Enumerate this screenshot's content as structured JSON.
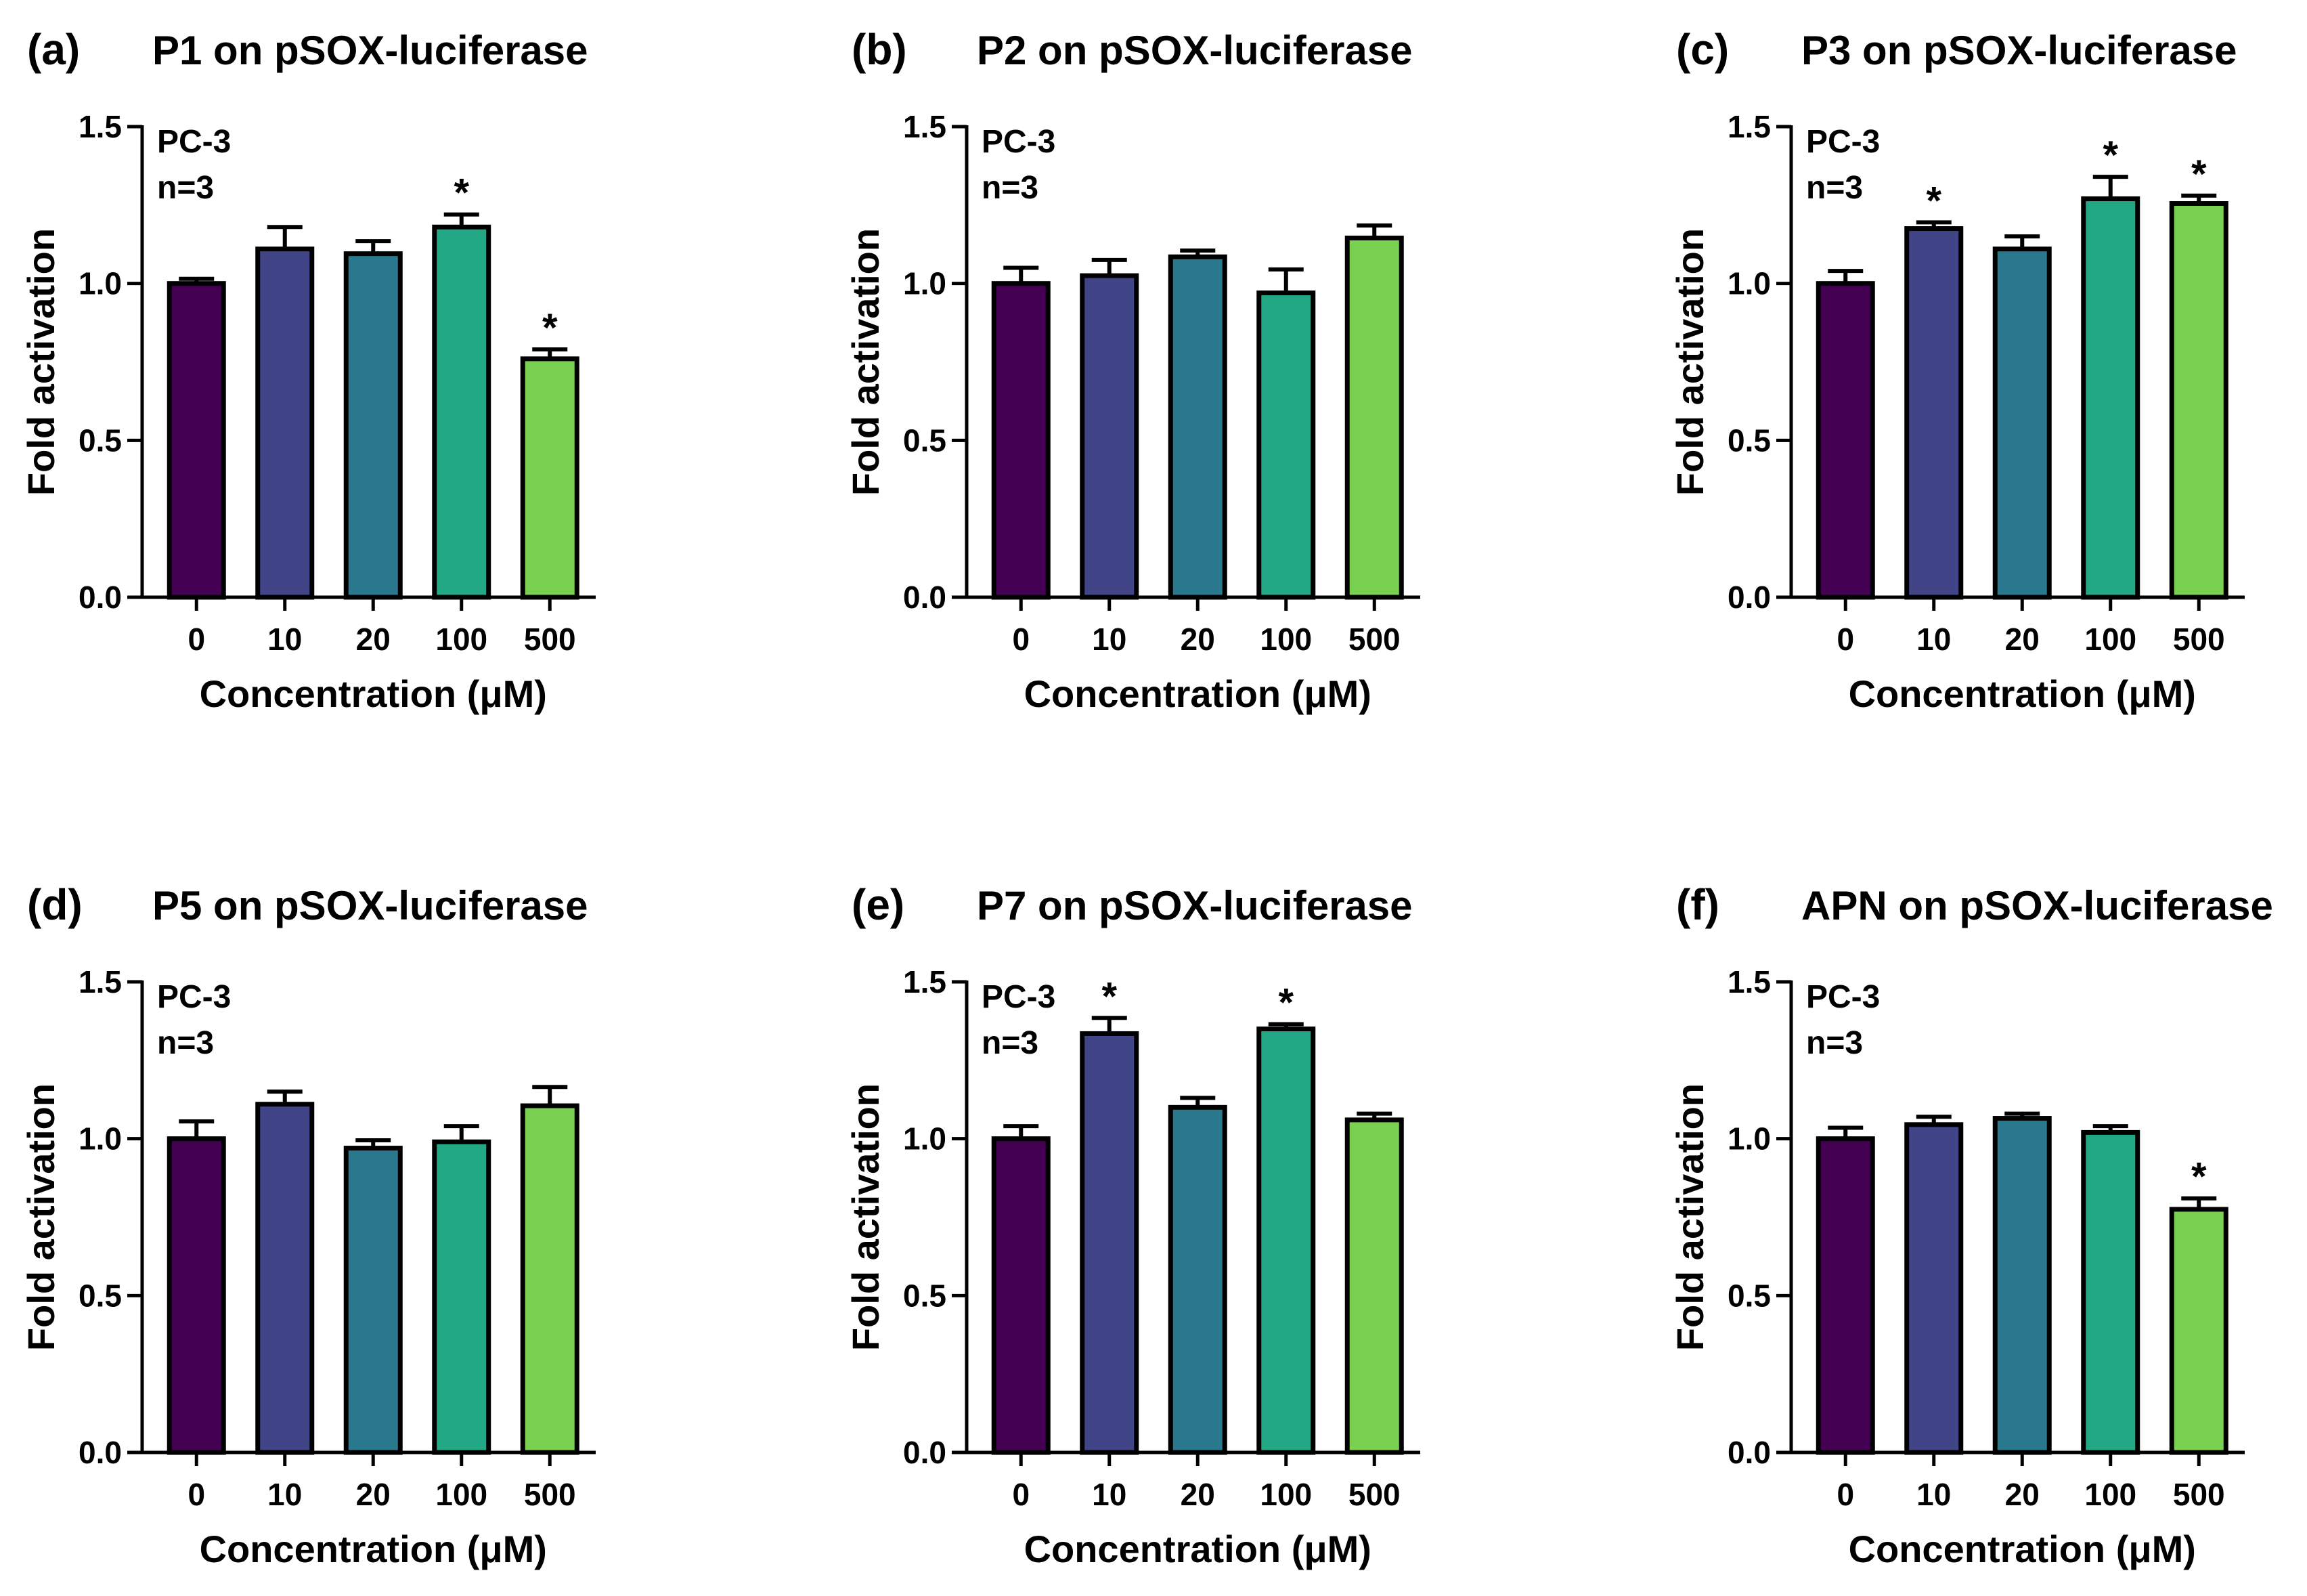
{
  "chart_data": [
    {
      "type": "bar",
      "panel_label": "(a)",
      "title": "P1 on pSOX-luciferase",
      "annotation": [
        "PC-3",
        "n=3"
      ],
      "xlabel": "Concentration (μM)",
      "ylabel": "Fold activation",
      "categories": [
        "0",
        "10",
        "20",
        "100",
        "500"
      ],
      "values": [
        1.0,
        1.11,
        1.095,
        1.18,
        0.76
      ],
      "errors": [
        0.015,
        0.07,
        0.04,
        0.04,
        0.03
      ],
      "significance": [
        "",
        "",
        "",
        "*",
        "*"
      ],
      "ylim": [
        0,
        1.5
      ],
      "yticks": [
        "0.0",
        "0.5",
        "1.0",
        "1.5"
      ],
      "colors": [
        "#440154",
        "#414487",
        "#2a788e",
        "#22a884",
        "#7ad151"
      ]
    },
    {
      "type": "bar",
      "panel_label": "(b)",
      "title": "P2 on pSOX-luciferase",
      "annotation": [
        "PC-3",
        "n=3"
      ],
      "xlabel": "Concentration (μM)",
      "ylabel": "Fold activation",
      "categories": [
        "0",
        "10",
        "20",
        "100",
        "500"
      ],
      "values": [
        1.0,
        1.025,
        1.085,
        0.97,
        1.145
      ],
      "errors": [
        0.05,
        0.05,
        0.02,
        0.075,
        0.04
      ],
      "significance": [
        "",
        "",
        "",
        "",
        ""
      ],
      "ylim": [
        0,
        1.5
      ],
      "yticks": [
        "0.0",
        "0.5",
        "1.0",
        "1.5"
      ],
      "colors": [
        "#440154",
        "#414487",
        "#2a788e",
        "#22a884",
        "#7ad151"
      ]
    },
    {
      "type": "bar",
      "panel_label": "(c)",
      "title": "P3 on pSOX-luciferase",
      "annotation": [
        "PC-3",
        "n=3"
      ],
      "xlabel": "Concentration (μM)",
      "ylabel": "Fold activation",
      "categories": [
        "0",
        "10",
        "20",
        "100",
        "500"
      ],
      "values": [
        1.0,
        1.175,
        1.11,
        1.27,
        1.255
      ],
      "errors": [
        0.04,
        0.02,
        0.04,
        0.07,
        0.025
      ],
      "significance": [
        "",
        "*",
        "",
        "*",
        "*"
      ],
      "ylim": [
        0,
        1.5
      ],
      "yticks": [
        "0.0",
        "0.5",
        "1.0",
        "1.5"
      ],
      "colors": [
        "#440154",
        "#414487",
        "#2a788e",
        "#22a884",
        "#7ad151"
      ]
    },
    {
      "type": "bar",
      "panel_label": "(d)",
      "title": "P5 on pSOX-luciferase",
      "annotation": [
        "PC-3",
        "n=3"
      ],
      "xlabel": "Concentration (μM)",
      "ylabel": "Fold activation",
      "categories": [
        "0",
        "10",
        "20",
        "100",
        "500"
      ],
      "values": [
        1.0,
        1.11,
        0.97,
        0.99,
        1.105
      ],
      "errors": [
        0.055,
        0.04,
        0.025,
        0.05,
        0.06
      ],
      "significance": [
        "",
        "",
        "",
        "",
        ""
      ],
      "ylim": [
        0,
        1.5
      ],
      "yticks": [
        "0.0",
        "0.5",
        "1.0",
        "1.5"
      ],
      "colors": [
        "#440154",
        "#414487",
        "#2a788e",
        "#22a884",
        "#7ad151"
      ]
    },
    {
      "type": "bar",
      "panel_label": "(e)",
      "title": "P7 on pSOX-luciferase",
      "annotation": [
        "PC-3",
        "n=3"
      ],
      "xlabel": "Concentration (μM)",
      "ylabel": "Fold activation",
      "categories": [
        "0",
        "10",
        "20",
        "100",
        "500"
      ],
      "values": [
        1.0,
        1.335,
        1.1,
        1.35,
        1.06
      ],
      "errors": [
        0.04,
        0.05,
        0.03,
        0.015,
        0.02
      ],
      "significance": [
        "",
        "*",
        "",
        "*",
        ""
      ],
      "ylim": [
        0,
        1.5
      ],
      "yticks": [
        "0.0",
        "0.5",
        "1.0",
        "1.5"
      ],
      "colors": [
        "#440154",
        "#414487",
        "#2a788e",
        "#22a884",
        "#7ad151"
      ]
    },
    {
      "type": "bar",
      "panel_label": "(f)",
      "title": "APN on pSOX-luciferase",
      "annotation": [
        "PC-3",
        "n=3"
      ],
      "xlabel": "Concentration (μM)",
      "ylabel": "Fold activation",
      "categories": [
        "0",
        "10",
        "20",
        "100",
        "500"
      ],
      "values": [
        1.0,
        1.045,
        1.065,
        1.02,
        0.775
      ],
      "errors": [
        0.035,
        0.025,
        0.015,
        0.02,
        0.035
      ],
      "significance": [
        "",
        "",
        "",
        "",
        "*"
      ],
      "ylim": [
        0,
        1.5
      ],
      "yticks": [
        "0.0",
        "0.5",
        "1.0",
        "1.5"
      ],
      "colors": [
        "#440154",
        "#414487",
        "#2a788e",
        "#22a884",
        "#7ad151"
      ]
    }
  ]
}
